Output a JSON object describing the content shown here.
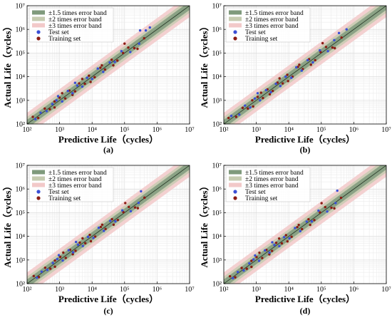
{
  "figure": {
    "captions": [
      "(a)",
      "(b)",
      "(c)",
      "(d)"
    ]
  },
  "colors": {
    "band_1_5": "#7f9a7c",
    "band_2": "#c5cbb0",
    "band_3": "#f2c9c9",
    "test_set": "#3b4fd6",
    "training_set": "#8b1c14",
    "diagonal": "#2c3e2c"
  },
  "chart_data": [
    {
      "type": "scatter",
      "caption": "(a)",
      "xlabel": "Predictive Life（cycles）",
      "ylabel": "Actual Life（cycles）",
      "xscale": "log",
      "yscale": "log",
      "xlim": [
        100,
        10000000
      ],
      "ylim": [
        100,
        10000000
      ],
      "x_tick_labels": [
        "10²",
        "10³",
        "10⁴",
        "10⁵",
        "10⁶",
        "10⁷"
      ],
      "y_tick_labels": [
        "10²",
        "10³",
        "10⁴",
        "10⁵",
        "10⁶",
        "10⁷"
      ],
      "grid": true,
      "legend_position": "top-left",
      "legend": [
        "±1.5 times error band",
        "±2 times error band",
        "±3 times error band",
        "Test set",
        "Training set"
      ],
      "bands": [
        {
          "name": "±1.5 times error band",
          "factor": 1.5
        },
        {
          "name": "±2 times error band",
          "factor": 2
        },
        {
          "name": "±3 times error band",
          "factor": 3
        }
      ],
      "series": [
        {
          "name": "Test set",
          "points": [
            [
              180,
              160
            ],
            [
              260,
              300
            ],
            [
              400,
              350
            ],
            [
              600,
              700
            ],
            [
              800,
              1000
            ],
            [
              1200,
              900
            ],
            [
              1800,
              2500
            ],
            [
              2500,
              2000
            ],
            [
              3500,
              4200
            ],
            [
              5000,
              3800
            ],
            [
              7000,
              9000
            ],
            [
              10000,
              8000
            ],
            [
              15000,
              22000
            ],
            [
              22000,
              16000
            ],
            [
              35000,
              40000
            ],
            [
              50000,
              42000
            ],
            [
              80000,
              120000
            ],
            [
              150000,
              110000
            ],
            [
              300000,
              900000
            ],
            [
              280000,
              250000
            ],
            [
              600000,
              1200000
            ],
            [
              450000,
              900000
            ],
            [
              900,
              1500
            ],
            [
              3000,
              5500
            ]
          ]
        },
        {
          "name": "Training set",
          "points": [
            [
              150,
              200
            ],
            [
              220,
              180
            ],
            [
              350,
              450
            ],
            [
              500,
              420
            ],
            [
              700,
              900
            ],
            [
              1000,
              1300
            ],
            [
              1500,
              1200
            ],
            [
              2000,
              2600
            ],
            [
              3000,
              2400
            ],
            [
              4000,
              5200
            ],
            [
              6000,
              5000
            ],
            [
              8000,
              11000
            ],
            [
              12000,
              9500
            ],
            [
              18000,
              24000
            ],
            [
              25000,
              20000
            ],
            [
              40000,
              52000
            ],
            [
              60000,
              48000
            ],
            [
              90000,
              100000
            ],
            [
              130000,
              170000
            ],
            [
              200000,
              160000
            ],
            [
              400000,
              420000
            ],
            [
              700,
              500
            ],
            [
              1200,
              2000
            ],
            [
              2500,
              1700
            ],
            [
              5000,
              8000
            ],
            [
              9000,
              6000
            ],
            [
              20000,
              30000
            ],
            [
              45000,
              30000
            ],
            [
              100000,
              250000
            ],
            [
              250000,
              150000
            ]
          ]
        }
      ]
    },
    {
      "type": "scatter",
      "caption": "(b)",
      "xlabel": "Predictive Life（cycles）",
      "ylabel": "Actual Life（cycles）",
      "xscale": "log",
      "yscale": "log",
      "xlim": [
        100,
        10000000
      ],
      "ylim": [
        100,
        10000000
      ],
      "x_tick_labels": [
        "10²",
        "10³",
        "10⁴",
        "10⁵",
        "10⁶",
        "10⁷"
      ],
      "y_tick_labels": [
        "10²",
        "10³",
        "10⁴",
        "10⁵",
        "10⁶",
        "10⁷"
      ],
      "grid": true,
      "legend_position": "top-left",
      "legend": [
        "±1.5 times error band",
        "±2 times error band",
        "±3 times error band",
        "Test set",
        "Training set"
      ],
      "bands": [
        {
          "name": "±1.5 times error band",
          "factor": 1.5
        },
        {
          "name": "±2 times error band",
          "factor": 2
        },
        {
          "name": "±3 times error band",
          "factor": 3
        }
      ],
      "series": [
        {
          "name": "Test set",
          "points": [
            [
              170,
              220
            ],
            [
              300,
              250
            ],
            [
              450,
              600
            ],
            [
              650,
              500
            ],
            [
              900,
              1200
            ],
            [
              1300,
              1000
            ],
            [
              2000,
              2700
            ],
            [
              2800,
              2200
            ],
            [
              4000,
              5000
            ],
            [
              5500,
              4000
            ],
            [
              8000,
              10000
            ],
            [
              12000,
              9000
            ],
            [
              17000,
              25000
            ],
            [
              25000,
              18000
            ],
            [
              38000,
              50000
            ],
            [
              55000,
              40000
            ],
            [
              90000,
              130000
            ],
            [
              160000,
              120000
            ],
            [
              350000,
              700000
            ],
            [
              250000,
              350000
            ],
            [
              600000,
              1000000
            ],
            [
              1100,
              2000
            ]
          ]
        },
        {
          "name": "Training set",
          "points": [
            [
              140,
              180
            ],
            [
              240,
              200
            ],
            [
              380,
              480
            ],
            [
              550,
              450
            ],
            [
              750,
              1000
            ],
            [
              1100,
              1400
            ],
            [
              1600,
              1250
            ],
            [
              2200,
              2900
            ],
            [
              3200,
              2500
            ],
            [
              4500,
              5600
            ],
            [
              6500,
              5200
            ],
            [
              9000,
              12000
            ],
            [
              13000,
              10000
            ],
            [
              19000,
              26000
            ],
            [
              27000,
              21000
            ],
            [
              42000,
              55000
            ],
            [
              65000,
              50000
            ],
            [
              95000,
              110000
            ],
            [
              140000,
              180000
            ],
            [
              220000,
              170000
            ],
            [
              420000,
              450000
            ],
            [
              800,
              550
            ],
            [
              1400,
              2100
            ],
            [
              2600,
              1800
            ],
            [
              5200,
              8500
            ],
            [
              9500,
              6500
            ],
            [
              21000,
              32000
            ],
            [
              48000,
              32000
            ],
            [
              110000,
              260000
            ],
            [
              260000,
              160000
            ]
          ]
        }
      ]
    },
    {
      "type": "scatter",
      "caption": "(c)",
      "xlabel": "Predictive Life（cycles）",
      "ylabel": "Actual Life（cycles）",
      "xscale": "log",
      "yscale": "log",
      "xlim": [
        100,
        10000000
      ],
      "ylim": [
        100,
        10000000
      ],
      "x_tick_labels": [
        "10²",
        "10³",
        "10⁴",
        "10⁵",
        "10⁶",
        "10⁷"
      ],
      "y_tick_labels": [
        "10²",
        "10³",
        "10⁴",
        "10⁵",
        "10⁶",
        "10⁷"
      ],
      "grid": true,
      "legend_position": "top-left",
      "legend": [
        "±1.5 times error band",
        "±2 times error band",
        "±3 times error band",
        "Test set",
        "Training set"
      ],
      "bands": [
        {
          "name": "±1.5 times error band",
          "factor": 1.5
        },
        {
          "name": "±2 times error band",
          "factor": 2
        },
        {
          "name": "±3 times error band",
          "factor": 3
        }
      ],
      "series": [
        {
          "name": "Test set",
          "points": [
            [
              200,
              180
            ],
            [
              280,
              320
            ],
            [
              420,
              380
            ],
            [
              620,
              750
            ],
            [
              850,
              1100
            ],
            [
              1250,
              950
            ],
            [
              1900,
              2600
            ],
            [
              2600,
              2100
            ],
            [
              3700,
              4400
            ],
            [
              5200,
              3900
            ],
            [
              7500,
              9500
            ],
            [
              11000,
              8500
            ],
            [
              16000,
              23000
            ],
            [
              23000,
              17000
            ],
            [
              36000,
              45000
            ],
            [
              52000,
              43000
            ],
            [
              85000,
              125000
            ],
            [
              155000,
              115000
            ],
            [
              320000,
              800000
            ],
            [
              270000,
              260000
            ],
            [
              950,
              1600
            ],
            [
              3200,
              5800
            ]
          ]
        },
        {
          "name": "Training set",
          "points": [
            [
              160,
              210
            ],
            [
              230,
              190
            ],
            [
              360,
              470
            ],
            [
              520,
              430
            ],
            [
              720,
              950
            ],
            [
              1050,
              1350
            ],
            [
              1550,
              1220
            ],
            [
              2100,
              2700
            ],
            [
              3100,
              2450
            ],
            [
              4200,
              5400
            ],
            [
              6200,
              5100
            ],
            [
              8500,
              11500
            ],
            [
              12500,
              9800
            ],
            [
              18500,
              25000
            ],
            [
              26000,
              20500
            ],
            [
              41000,
              53000
            ],
            [
              62000,
              49000
            ],
            [
              92000,
              105000
            ],
            [
              135000,
              175000
            ],
            [
              210000,
              165000
            ],
            [
              410000,
              430000
            ],
            [
              720,
              520
            ],
            [
              1300,
              2050
            ],
            [
              2550,
              1750
            ],
            [
              5100,
              8200
            ],
            [
              9200,
              6200
            ],
            [
              20500,
              31000
            ],
            [
              46000,
              31000
            ],
            [
              105000,
              255000
            ],
            [
              255000,
              155000
            ]
          ]
        }
      ]
    },
    {
      "type": "scatter",
      "caption": "(d)",
      "xlabel": "Predictive Life（cycles）",
      "ylabel": "Actual Life（cycles）",
      "xscale": "log",
      "yscale": "log",
      "xlim": [
        100,
        10000000
      ],
      "ylim": [
        100,
        10000000
      ],
      "x_tick_labels": [
        "10²",
        "10³",
        "10⁴",
        "10⁵",
        "10⁶",
        "10⁷"
      ],
      "y_tick_labels": [
        "10²",
        "10³",
        "10⁴",
        "10⁵",
        "10⁶",
        "10⁷"
      ],
      "grid": true,
      "legend_position": "top-left",
      "legend": [
        "±1.5 times error band",
        "±2 times error band",
        "±3 times error band",
        "Test set",
        "Training set"
      ],
      "bands": [
        {
          "name": "±1.5 times error band",
          "factor": 1.5
        },
        {
          "name": "±2 times error band",
          "factor": 2
        },
        {
          "name": "±3 times error band",
          "factor": 3
        }
      ],
      "series": [
        {
          "name": "Test set",
          "points": [
            [
              190,
              170
            ],
            [
              270,
              310
            ],
            [
              410,
              360
            ],
            [
              610,
              720
            ],
            [
              820,
              1050
            ],
            [
              1220,
              920
            ],
            [
              1850,
              2550
            ],
            [
              2550,
              2050
            ],
            [
              3600,
              4300
            ],
            [
              5100,
              3850
            ],
            [
              7200,
              9200
            ],
            [
              10500,
              8200
            ],
            [
              15500,
              22500
            ],
            [
              22500,
              16500
            ],
            [
              35500,
              42000
            ],
            [
              51000,
              42500
            ],
            [
              82000,
              122000
            ],
            [
              152000,
              112000
            ],
            [
              310000,
              850000
            ],
            [
              275000,
              255000
            ],
            [
              920,
              1550
            ],
            [
              3100,
              5600
            ]
          ]
        },
        {
          "name": "Training set",
          "points": [
            [
              155,
              205
            ],
            [
              225,
              185
            ],
            [
              355,
              460
            ],
            [
              510,
              425
            ],
            [
              710,
              920
            ],
            [
              1020,
              1320
            ],
            [
              1520,
              1210
            ],
            [
              2050,
              2650
            ],
            [
              3050,
              2420
            ],
            [
              4100,
              5300
            ],
            [
              6100,
              5050
            ],
            [
              8200,
              11200
            ],
            [
              12200,
              9600
            ],
            [
              18200,
              24500
            ],
            [
              25500,
              20200
            ],
            [
              40500,
              52500
            ],
            [
              61000,
              48500
            ],
            [
              91000,
              102000
            ],
            [
              132000,
              172000
            ],
            [
              205000,
              162000
            ],
            [
              405000,
              425000
            ],
            [
              710,
              510
            ],
            [
              1250,
              2020
            ],
            [
              2520,
              1720
            ],
            [
              5050,
              8100
            ],
            [
              9100,
              6100
            ],
            [
              20200,
              30500
            ],
            [
              45500,
              30500
            ],
            [
              102000,
              252000
            ],
            [
              252000,
              152000
            ]
          ]
        }
      ]
    }
  ]
}
